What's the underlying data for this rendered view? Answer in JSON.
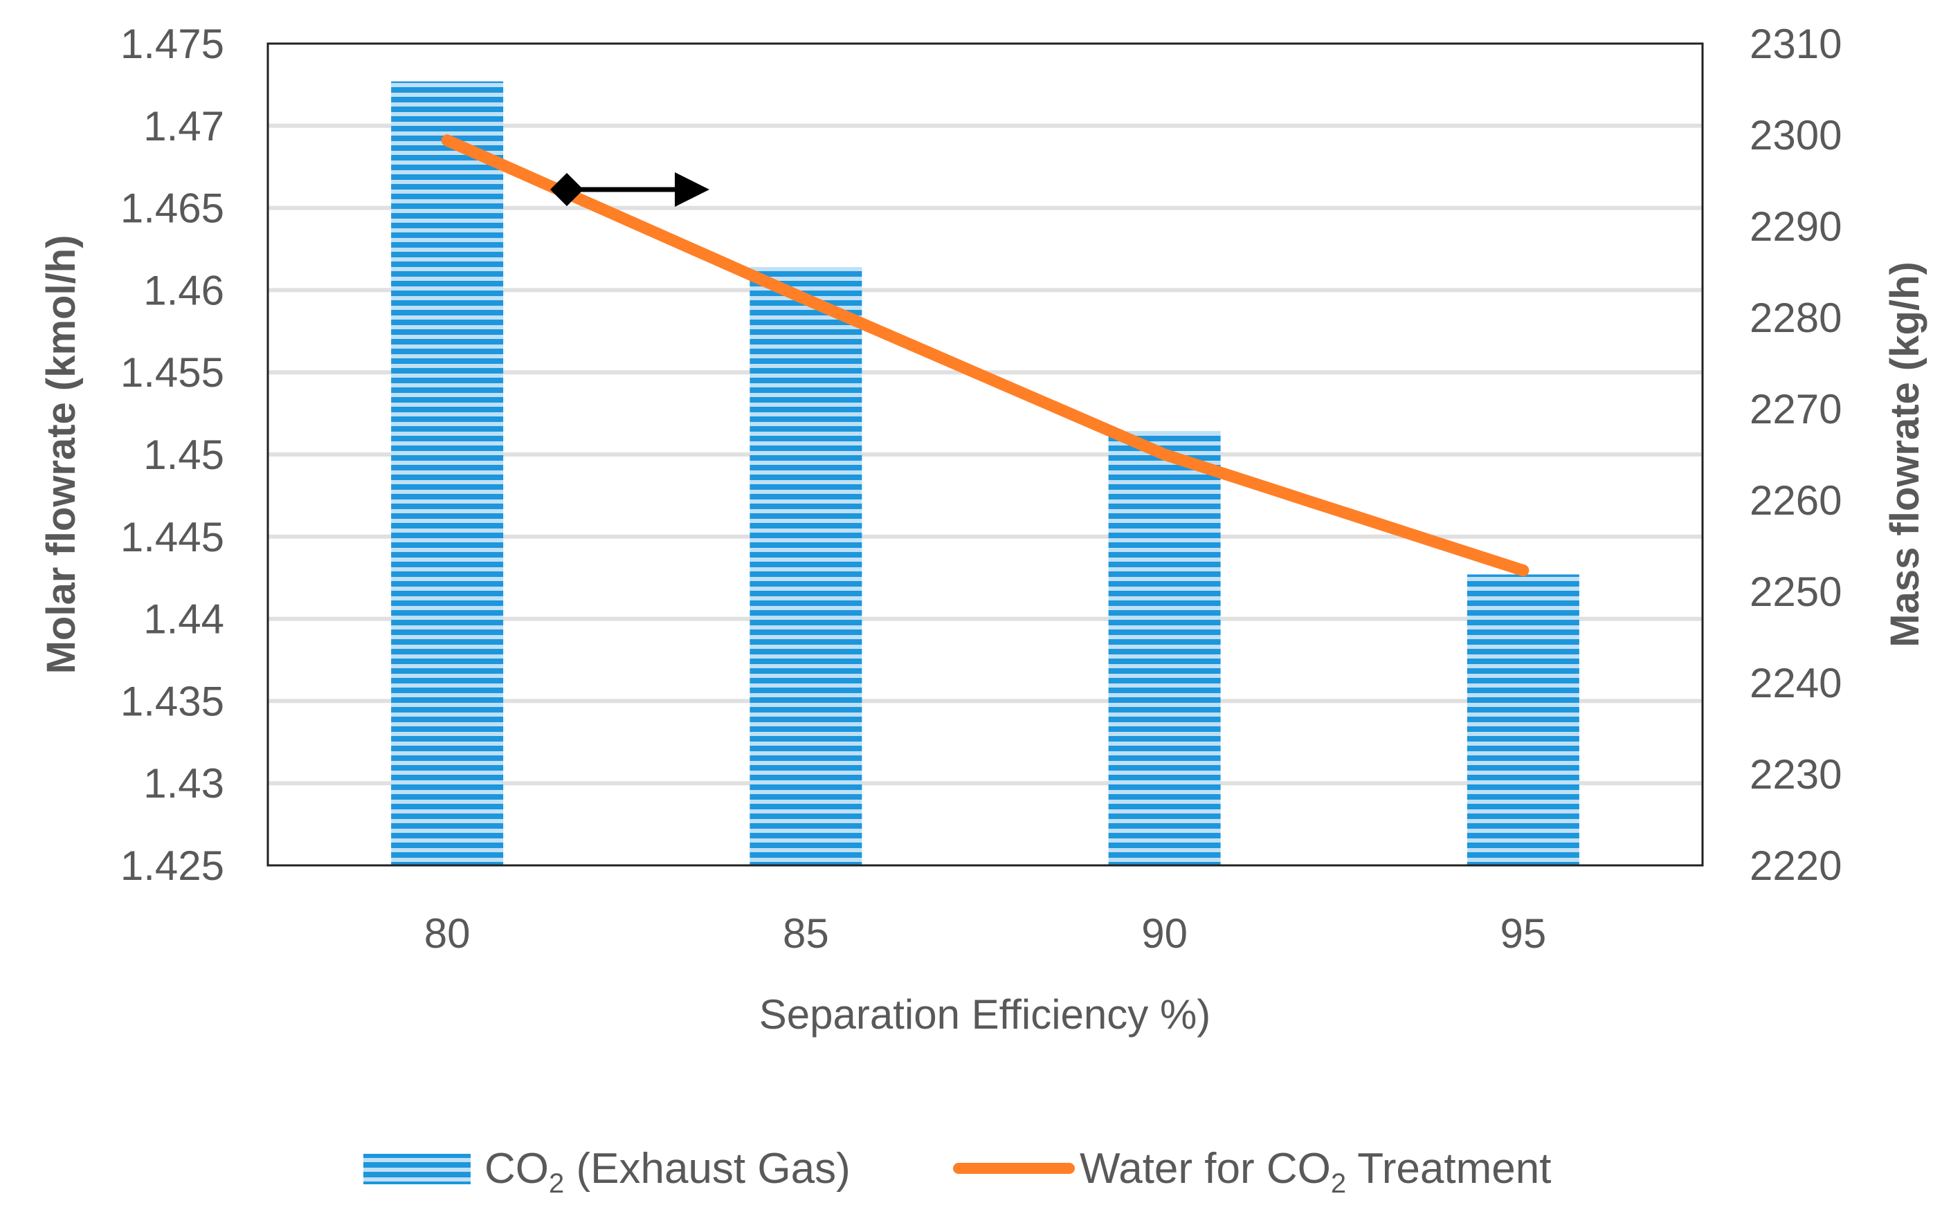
{
  "chart_data": {
    "type": "bar+line",
    "title": "",
    "xlabel": "Separation Efficiency %)",
    "ylabel_left": "Molar flowrate (kmol/h)",
    "ylabel_right": "Mass flowrate (kg/h)",
    "categories": [
      "80",
      "85",
      "90",
      "95"
    ],
    "ylim_left": [
      1.425,
      1.475
    ],
    "yticks_left": [
      "1.425",
      "1.43",
      "1.435",
      "1.44",
      "1.445",
      "1.45",
      "1.455",
      "1.46",
      "1.465",
      "1.47",
      "1.475"
    ],
    "ylim_right": [
      2220,
      2310
    ],
    "yticks_right": [
      "2220",
      "2230",
      "2240",
      "2250",
      "2260",
      "2270",
      "2280",
      "2290",
      "2300",
      "2310"
    ],
    "grid": true,
    "legend_position": "bottom",
    "series": [
      {
        "name": "CO2 (Exhaust Gas)",
        "legend_main": "CO",
        "legend_sub": "2",
        "legend_rest": " (Exhaust Gas)",
        "type": "bar",
        "axis": "left",
        "color": "#1E96DC",
        "values": [
          1.4727,
          1.4614,
          1.4514,
          1.4427
        ]
      },
      {
        "name": "Water for CO2 Treatment",
        "legend_main": "Water for CO",
        "legend_sub": "2",
        "legend_rest": " Treatment",
        "type": "line",
        "axis": "right",
        "color": "#FF7F27",
        "values": [
          2299.4,
          2282,
          2265,
          2252.3
        ]
      }
    ]
  }
}
